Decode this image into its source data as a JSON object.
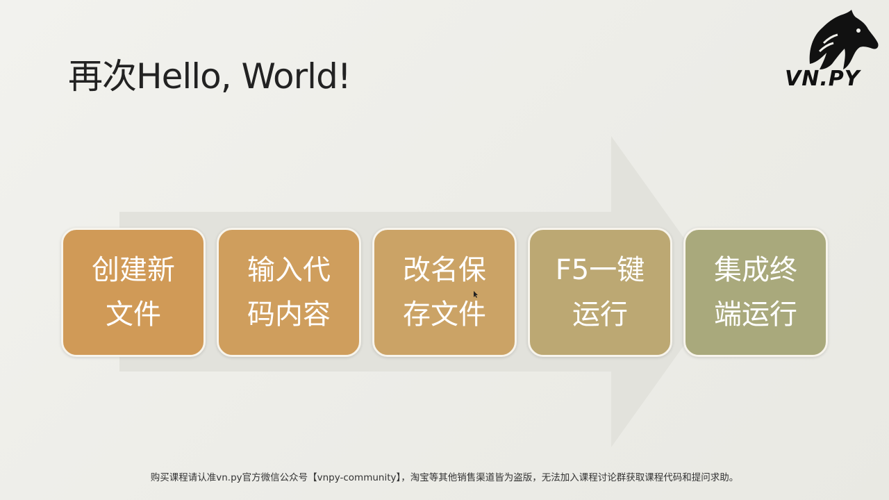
{
  "slide": {
    "title": "再次Hello, World!",
    "logo_text": "VN.PY",
    "steps": [
      {
        "label": "创建新文件",
        "color": "#d09a57"
      },
      {
        "label": "输入代码内容",
        "color": "#cf9e5d"
      },
      {
        "label": "改名保存文件",
        "color": "#cba366"
      },
      {
        "label": "F5一键运行",
        "color": "#bca873"
      },
      {
        "label": "集成终端运行",
        "color": "#a9a97c"
      }
    ],
    "footer": "购买课程请认准vn.py官方微信公众号【vnpy-community】，淘宝等其他销售渠道皆为盗版，无法加入课程讨论群获取课程代码和提问求助。"
  },
  "icons": {
    "logo": "horse-head-icon",
    "arrow": "right-arrow-icon",
    "cursor": "mouse-cursor-icon"
  }
}
